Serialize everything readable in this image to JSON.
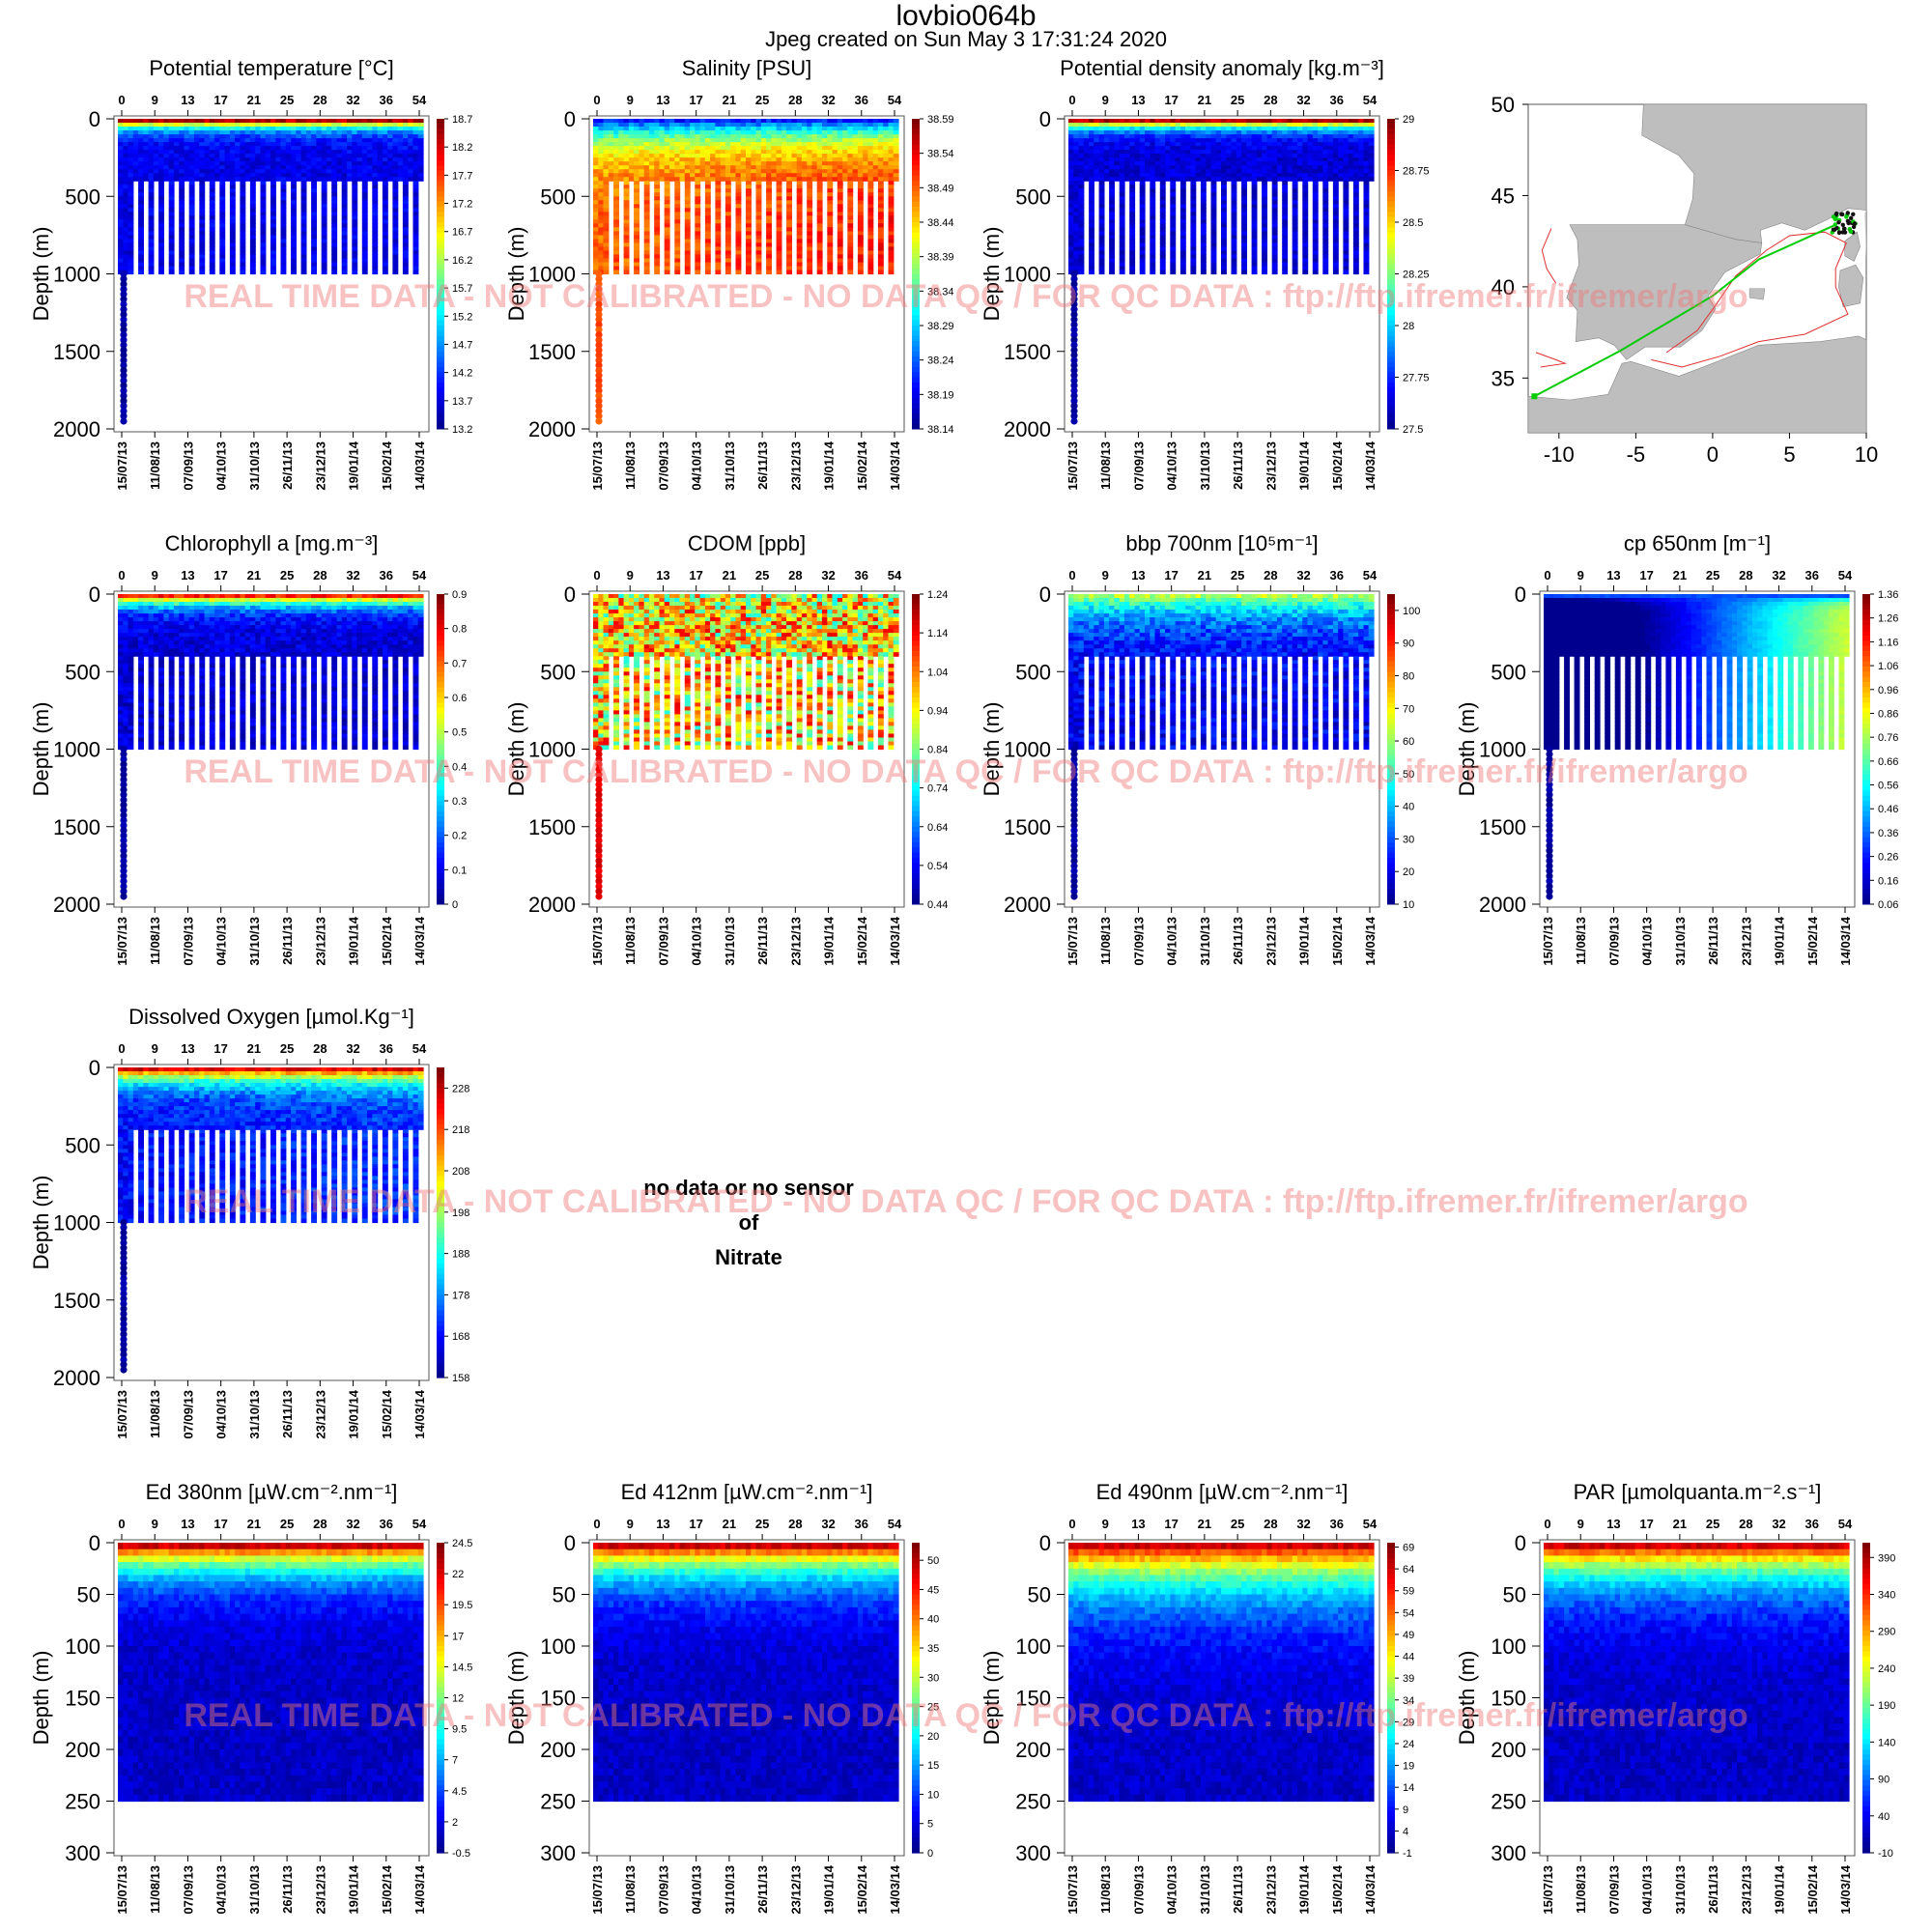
{
  "header": {
    "title": "lovbio064b",
    "subtitle": "Jpeg created on  Sun May  3 17:31:24 2020"
  },
  "watermark": "REAL TIME DATA - NOT CALIBRATED - NO DATA QC   /  FOR QC DATA : ftp://ftp.ifremer.fr/ifremer/argo",
  "no_data_panel": {
    "line1": "no data or no sensor",
    "line2": "of",
    "line3": "Nitrate"
  },
  "colors": {
    "jet": [
      "#00008f",
      "#0000ff",
      "#0080ff",
      "#00ffff",
      "#80ff80",
      "#ffff00",
      "#ff8000",
      "#ff0000",
      "#800000"
    ],
    "map_land": "#bebebe",
    "map_track": "#00cc00",
    "map_contour": "#e03030"
  },
  "chart_data": [
    {
      "type": "heatmap",
      "title": "Potential temperature [°C]",
      "ylabel": "Depth (m)",
      "ylim": [
        2000,
        0
      ],
      "yticks": [
        "0",
        "500",
        "1000",
        "1500",
        "2000"
      ],
      "top_ticks": [
        "0",
        "9",
        "13",
        "17",
        "21",
        "25",
        "28",
        "32",
        "36",
        "54"
      ],
      "date_ticks": [
        "15/07/13",
        "11/08/13",
        "07/09/13",
        "04/10/13",
        "31/10/13",
        "26/11/13",
        "23/12/13",
        "19/01/14",
        "15/02/14",
        "14/03/14"
      ],
      "colorbar": {
        "ticks": [
          "18.7",
          "18.2",
          "17.7",
          "17.2",
          "16.7",
          "16.2",
          "15.7",
          "15.2",
          "14.7",
          "14.2",
          "13.7",
          "13.2"
        ],
        "range": [
          13.2,
          18.7
        ]
      },
      "profile": {
        "surface_high": 0.95,
        "surface_depth": 45,
        "deep_value": 0.1,
        "trend": 0.0,
        "texture": 0.1,
        "deep_depth": 1000
      }
    },
    {
      "type": "heatmap",
      "title": "Salinity [PSU]",
      "ylabel": "Depth (m)",
      "ylim": [
        2000,
        0
      ],
      "yticks": [
        "0",
        "500",
        "1000",
        "1500",
        "2000"
      ],
      "top_ticks": [
        "0",
        "9",
        "13",
        "17",
        "21",
        "25",
        "28",
        "32",
        "36",
        "54"
      ],
      "date_ticks": [
        "15/07/13",
        "11/08/13",
        "07/09/13",
        "04/10/13",
        "31/10/13",
        "26/11/13",
        "23/12/13",
        "19/01/14",
        "15/02/14",
        "14/03/14"
      ],
      "colorbar": {
        "ticks": [
          "38.59",
          "38.54",
          "38.49",
          "38.44",
          "38.39",
          "38.34",
          "38.29",
          "38.24",
          "38.19",
          "38.14"
        ],
        "range": [
          38.14,
          38.59
        ]
      },
      "profile": {
        "surface_high": 0.15,
        "surface_depth": 150,
        "deep_value": 0.82,
        "trend": 0.08,
        "texture": 0.12,
        "deep_depth": 1000,
        "deep_tail": 0.8
      }
    },
    {
      "type": "heatmap",
      "title": "Potential density anomaly [kg.m⁻³]",
      "ylabel": "Depth (m)",
      "ylim": [
        2000,
        0
      ],
      "yticks": [
        "0",
        "500",
        "1000",
        "1500",
        "2000"
      ],
      "top_ticks": [
        "0",
        "9",
        "13",
        "17",
        "21",
        "25",
        "28",
        "32",
        "36",
        "54"
      ],
      "date_ticks": [
        "15/07/13",
        "11/08/13",
        "07/09/13",
        "04/10/13",
        "31/10/13",
        "26/11/13",
        "23/12/13",
        "19/01/14",
        "15/02/14",
        "14/03/14"
      ],
      "colorbar": {
        "ticks": [
          "29",
          "28.75",
          "28.5",
          "28.25",
          "28",
          "27.75",
          "27.5"
        ],
        "range": [
          27.5,
          29
        ]
      },
      "profile": {
        "surface_high": 0.95,
        "surface_depth": 45,
        "deep_value": 0.08,
        "trend": 0.0,
        "texture": 0.1,
        "deep_depth": 1000
      }
    },
    {
      "type": "heatmap",
      "title": "Chlorophyll a [mg.m⁻³]",
      "ylabel": "Depth (m)",
      "ylim": [
        2000,
        0
      ],
      "yticks": [
        "0",
        "500",
        "1000",
        "1500",
        "2000"
      ],
      "top_ticks": [
        "0",
        "9",
        "13",
        "17",
        "21",
        "25",
        "28",
        "32",
        "36",
        "54"
      ],
      "date_ticks": [
        "15/07/13",
        "11/08/13",
        "07/09/13",
        "04/10/13",
        "31/10/13",
        "26/11/13",
        "23/12/13",
        "19/01/14",
        "15/02/14",
        "14/03/14"
      ],
      "colorbar": {
        "ticks": [
          "0.9",
          "0.8",
          "0.7",
          "0.6",
          "0.5",
          "0.4",
          "0.3",
          "0.2",
          "0.1",
          "0"
        ],
        "range": [
          0,
          0.9
        ]
      },
      "profile": {
        "surface_high": 0.85,
        "surface_depth": 60,
        "deep_value": 0.08,
        "trend": 0.0,
        "texture": 0.12,
        "deep_depth": 1000
      }
    },
    {
      "type": "heatmap",
      "title": "CDOM  [ppb]",
      "ylabel": "Depth (m)",
      "ylim": [
        2000,
        0
      ],
      "yticks": [
        "0",
        "500",
        "1000",
        "1500",
        "2000"
      ],
      "top_ticks": [
        "0",
        "9",
        "13",
        "17",
        "21",
        "25",
        "28",
        "32",
        "36",
        "54"
      ],
      "date_ticks": [
        "15/07/13",
        "11/08/13",
        "07/09/13",
        "04/10/13",
        "31/10/13",
        "26/11/13",
        "23/12/13",
        "19/01/14",
        "15/02/14",
        "14/03/14"
      ],
      "colorbar": {
        "ticks": [
          "1.24",
          "1.14",
          "1.04",
          "0.94",
          "0.84",
          "0.74",
          "0.64",
          "0.54",
          "0.44"
        ],
        "range": [
          0.44,
          1.24
        ]
      },
      "profile": {
        "surface_high": 0.6,
        "surface_depth": 40,
        "deep_value": 0.65,
        "trend": 0.0,
        "texture": 0.5,
        "deep_depth": 1000,
        "deep_tail": 0.9
      }
    },
    {
      "type": "heatmap",
      "title": "bbp 700nm [10⁵m⁻¹]",
      "ylabel": "Depth (m)",
      "ylim": [
        2000,
        0
      ],
      "yticks": [
        "0",
        "500",
        "1000",
        "1500",
        "2000"
      ],
      "top_ticks": [
        "0",
        "9",
        "13",
        "17",
        "21",
        "25",
        "28",
        "32",
        "36",
        "54"
      ],
      "date_ticks": [
        "15/07/13",
        "11/08/13",
        "07/09/13",
        "04/10/13",
        "31/10/13",
        "26/11/13",
        "23/12/13",
        "19/01/14",
        "15/02/14",
        "14/03/14"
      ],
      "colorbar": {
        "ticks": [
          "100",
          "90",
          "80",
          "70",
          "60",
          "50",
          "40",
          "30",
          "20",
          "10"
        ],
        "range": [
          10,
          105
        ]
      },
      "profile": {
        "surface_high": 0.55,
        "surface_depth": 150,
        "deep_value": 0.1,
        "trend": 0.0,
        "texture": 0.15,
        "deep_depth": 1000
      }
    },
    {
      "type": "heatmap",
      "title": "cp 650nm [m⁻¹]",
      "ylabel": "Depth (m)",
      "ylim": [
        2000,
        0
      ],
      "yticks": [
        "0",
        "500",
        "1000",
        "1500",
        "2000"
      ],
      "top_ticks": [
        "0",
        "9",
        "13",
        "17",
        "21",
        "25",
        "28",
        "32",
        "36",
        "54"
      ],
      "date_ticks": [
        "15/07/13",
        "11/08/13",
        "07/09/13",
        "04/10/13",
        "31/10/13",
        "26/11/13",
        "23/12/13",
        "19/01/14",
        "15/02/14",
        "14/03/14"
      ],
      "colorbar": {
        "ticks": [
          "1.36",
          "1.26",
          "1.16",
          "1.06",
          "0.96",
          "0.86",
          "0.76",
          "0.66",
          "0.56",
          "0.46",
          "0.36",
          "0.26",
          "0.16",
          "0.06"
        ],
        "range": [
          0.06,
          1.36
        ]
      },
      "profile": {
        "surface_high": 0.2,
        "surface_depth": 30,
        "deep_value": 0.15,
        "trend": 0.85,
        "texture": 0.03,
        "deep_depth": 1000
      }
    },
    {
      "type": "heatmap",
      "title": "Dissolved Oxygen [µmol.Kg⁻¹]",
      "ylabel": "Depth (m)",
      "ylim": [
        2000,
        0
      ],
      "yticks": [
        "0",
        "500",
        "1000",
        "1500",
        "2000"
      ],
      "top_ticks": [
        "0",
        "9",
        "13",
        "17",
        "21",
        "25",
        "28",
        "32",
        "36",
        "54"
      ],
      "date_ticks": [
        "15/07/13",
        "11/08/13",
        "07/09/13",
        "04/10/13",
        "31/10/13",
        "26/11/13",
        "23/12/13",
        "19/01/14",
        "15/02/14",
        "14/03/14"
      ],
      "colorbar": {
        "ticks": [
          "228",
          "218",
          "208",
          "198",
          "188",
          "178",
          "168",
          "158"
        ],
        "range": [
          158,
          233
        ]
      },
      "profile": {
        "surface_high": 0.9,
        "surface_depth": 80,
        "deep_value": 0.15,
        "trend": 0.05,
        "texture": 0.12,
        "deep_depth": 1000
      }
    },
    {
      "type": "heatmap",
      "title": "Ed 380nm [µW.cm⁻².nm⁻¹]",
      "ylabel": "Depth (m)",
      "ylim": [
        300,
        0
      ],
      "yticks": [
        "0",
        "50",
        "100",
        "150",
        "200",
        "250",
        "300"
      ],
      "top_ticks": [
        "0",
        "9",
        "13",
        "17",
        "21",
        "25",
        "28",
        "32",
        "36",
        "54"
      ],
      "date_ticks": [
        "15/07/13",
        "11/08/13",
        "07/09/13",
        "04/10/13",
        "31/10/13",
        "26/11/13",
        "23/12/13",
        "19/01/14",
        "15/02/14",
        "14/03/14"
      ],
      "colorbar": {
        "ticks": [
          "24.5",
          "22",
          "19.5",
          "17",
          "14.5",
          "12",
          "9.5",
          "7",
          "4.5",
          "2",
          "-0.5"
        ],
        "range": [
          -0.5,
          24.5
        ]
      },
      "profile": {
        "surface_high": 0.92,
        "surface_depth": 25,
        "deep_value": 0.06,
        "trend": 0.0,
        "texture": 0.08,
        "deep_depth": 250
      }
    },
    {
      "type": "heatmap",
      "title": "Ed 412nm [µW.cm⁻².nm⁻¹]",
      "ylabel": "Depth (m)",
      "ylim": [
        300,
        0
      ],
      "yticks": [
        "0",
        "50",
        "100",
        "150",
        "200",
        "250",
        "300"
      ],
      "top_ticks": [
        "0",
        "9",
        "13",
        "17",
        "21",
        "25",
        "28",
        "32",
        "36",
        "54"
      ],
      "date_ticks": [
        "15/07/13",
        "11/08/13",
        "07/09/13",
        "04/10/13",
        "31/10/13",
        "26/11/13",
        "23/12/13",
        "19/01/14",
        "15/02/14",
        "14/03/14"
      ],
      "colorbar": {
        "ticks": [
          "50",
          "45",
          "40",
          "35",
          "30",
          "25",
          "20",
          "15",
          "10",
          "5",
          "0"
        ],
        "range": [
          0,
          53
        ]
      },
      "profile": {
        "surface_high": 0.92,
        "surface_depth": 28,
        "deep_value": 0.06,
        "trend": 0.0,
        "texture": 0.08,
        "deep_depth": 250
      }
    },
    {
      "type": "heatmap",
      "title": "Ed 490nm [µW.cm⁻².nm⁻¹]",
      "ylabel": "Depth (m)",
      "ylim": [
        300,
        0
      ],
      "yticks": [
        "0",
        "50",
        "100",
        "150",
        "200",
        "250",
        "300"
      ],
      "top_ticks": [
        "0",
        "9",
        "13",
        "17",
        "21",
        "25",
        "28",
        "32",
        "36",
        "54"
      ],
      "date_ticks": [
        "15/07/13",
        "11/08/13",
        "07/09/13",
        "04/10/13",
        "31/10/13",
        "26/11/13",
        "23/12/13",
        "19/01/14",
        "15/02/14",
        "14/03/14"
      ],
      "colorbar": {
        "ticks": [
          "69",
          "64",
          "59",
          "54",
          "49",
          "44",
          "39",
          "34",
          "29",
          "24",
          "19",
          "14",
          "9",
          "4",
          "-1"
        ],
        "range": [
          -1,
          70
        ]
      },
      "profile": {
        "surface_high": 0.92,
        "surface_depth": 40,
        "deep_value": 0.06,
        "trend": 0.0,
        "texture": 0.08,
        "deep_depth": 250
      }
    },
    {
      "type": "heatmap",
      "title": "PAR [µmolquanta.m⁻².s⁻¹]",
      "ylabel": "Depth (m)",
      "ylim": [
        300,
        0
      ],
      "yticks": [
        "0",
        "50",
        "100",
        "150",
        "200",
        "250",
        "300"
      ],
      "top_ticks": [
        "0",
        "9",
        "13",
        "17",
        "21",
        "25",
        "28",
        "32",
        "36",
        "54"
      ],
      "date_ticks": [
        "15/07/13",
        "11/08/13",
        "07/09/13",
        "04/10/13",
        "31/10/13",
        "26/11/13",
        "23/12/13",
        "19/01/14",
        "15/02/14",
        "14/03/14"
      ],
      "colorbar": {
        "ticks": [
          "390",
          "340",
          "290",
          "240",
          "190",
          "140",
          "90",
          "40",
          "-10"
        ],
        "range": [
          -10,
          410
        ]
      },
      "profile": {
        "surface_high": 0.92,
        "surface_depth": 32,
        "deep_value": 0.06,
        "trend": 0.0,
        "texture": 0.08,
        "deep_depth": 250
      }
    },
    {
      "type": "scatter",
      "title": "",
      "xticks": [
        "-10",
        "-5",
        "0",
        "5",
        "10"
      ],
      "yticks": [
        "50",
        "45",
        "40",
        "35"
      ],
      "xlim": [
        -12,
        10
      ],
      "ylim": [
        32,
        50
      ],
      "track": [
        [
          -11.6,
          34.0
        ],
        [
          -6,
          36.5
        ],
        [
          0,
          39.5
        ],
        [
          3,
          41.5
        ],
        [
          8,
          43.4
        ]
      ],
      "float_cluster": {
        "lon": 8.5,
        "lat": 43.5
      }
    }
  ]
}
